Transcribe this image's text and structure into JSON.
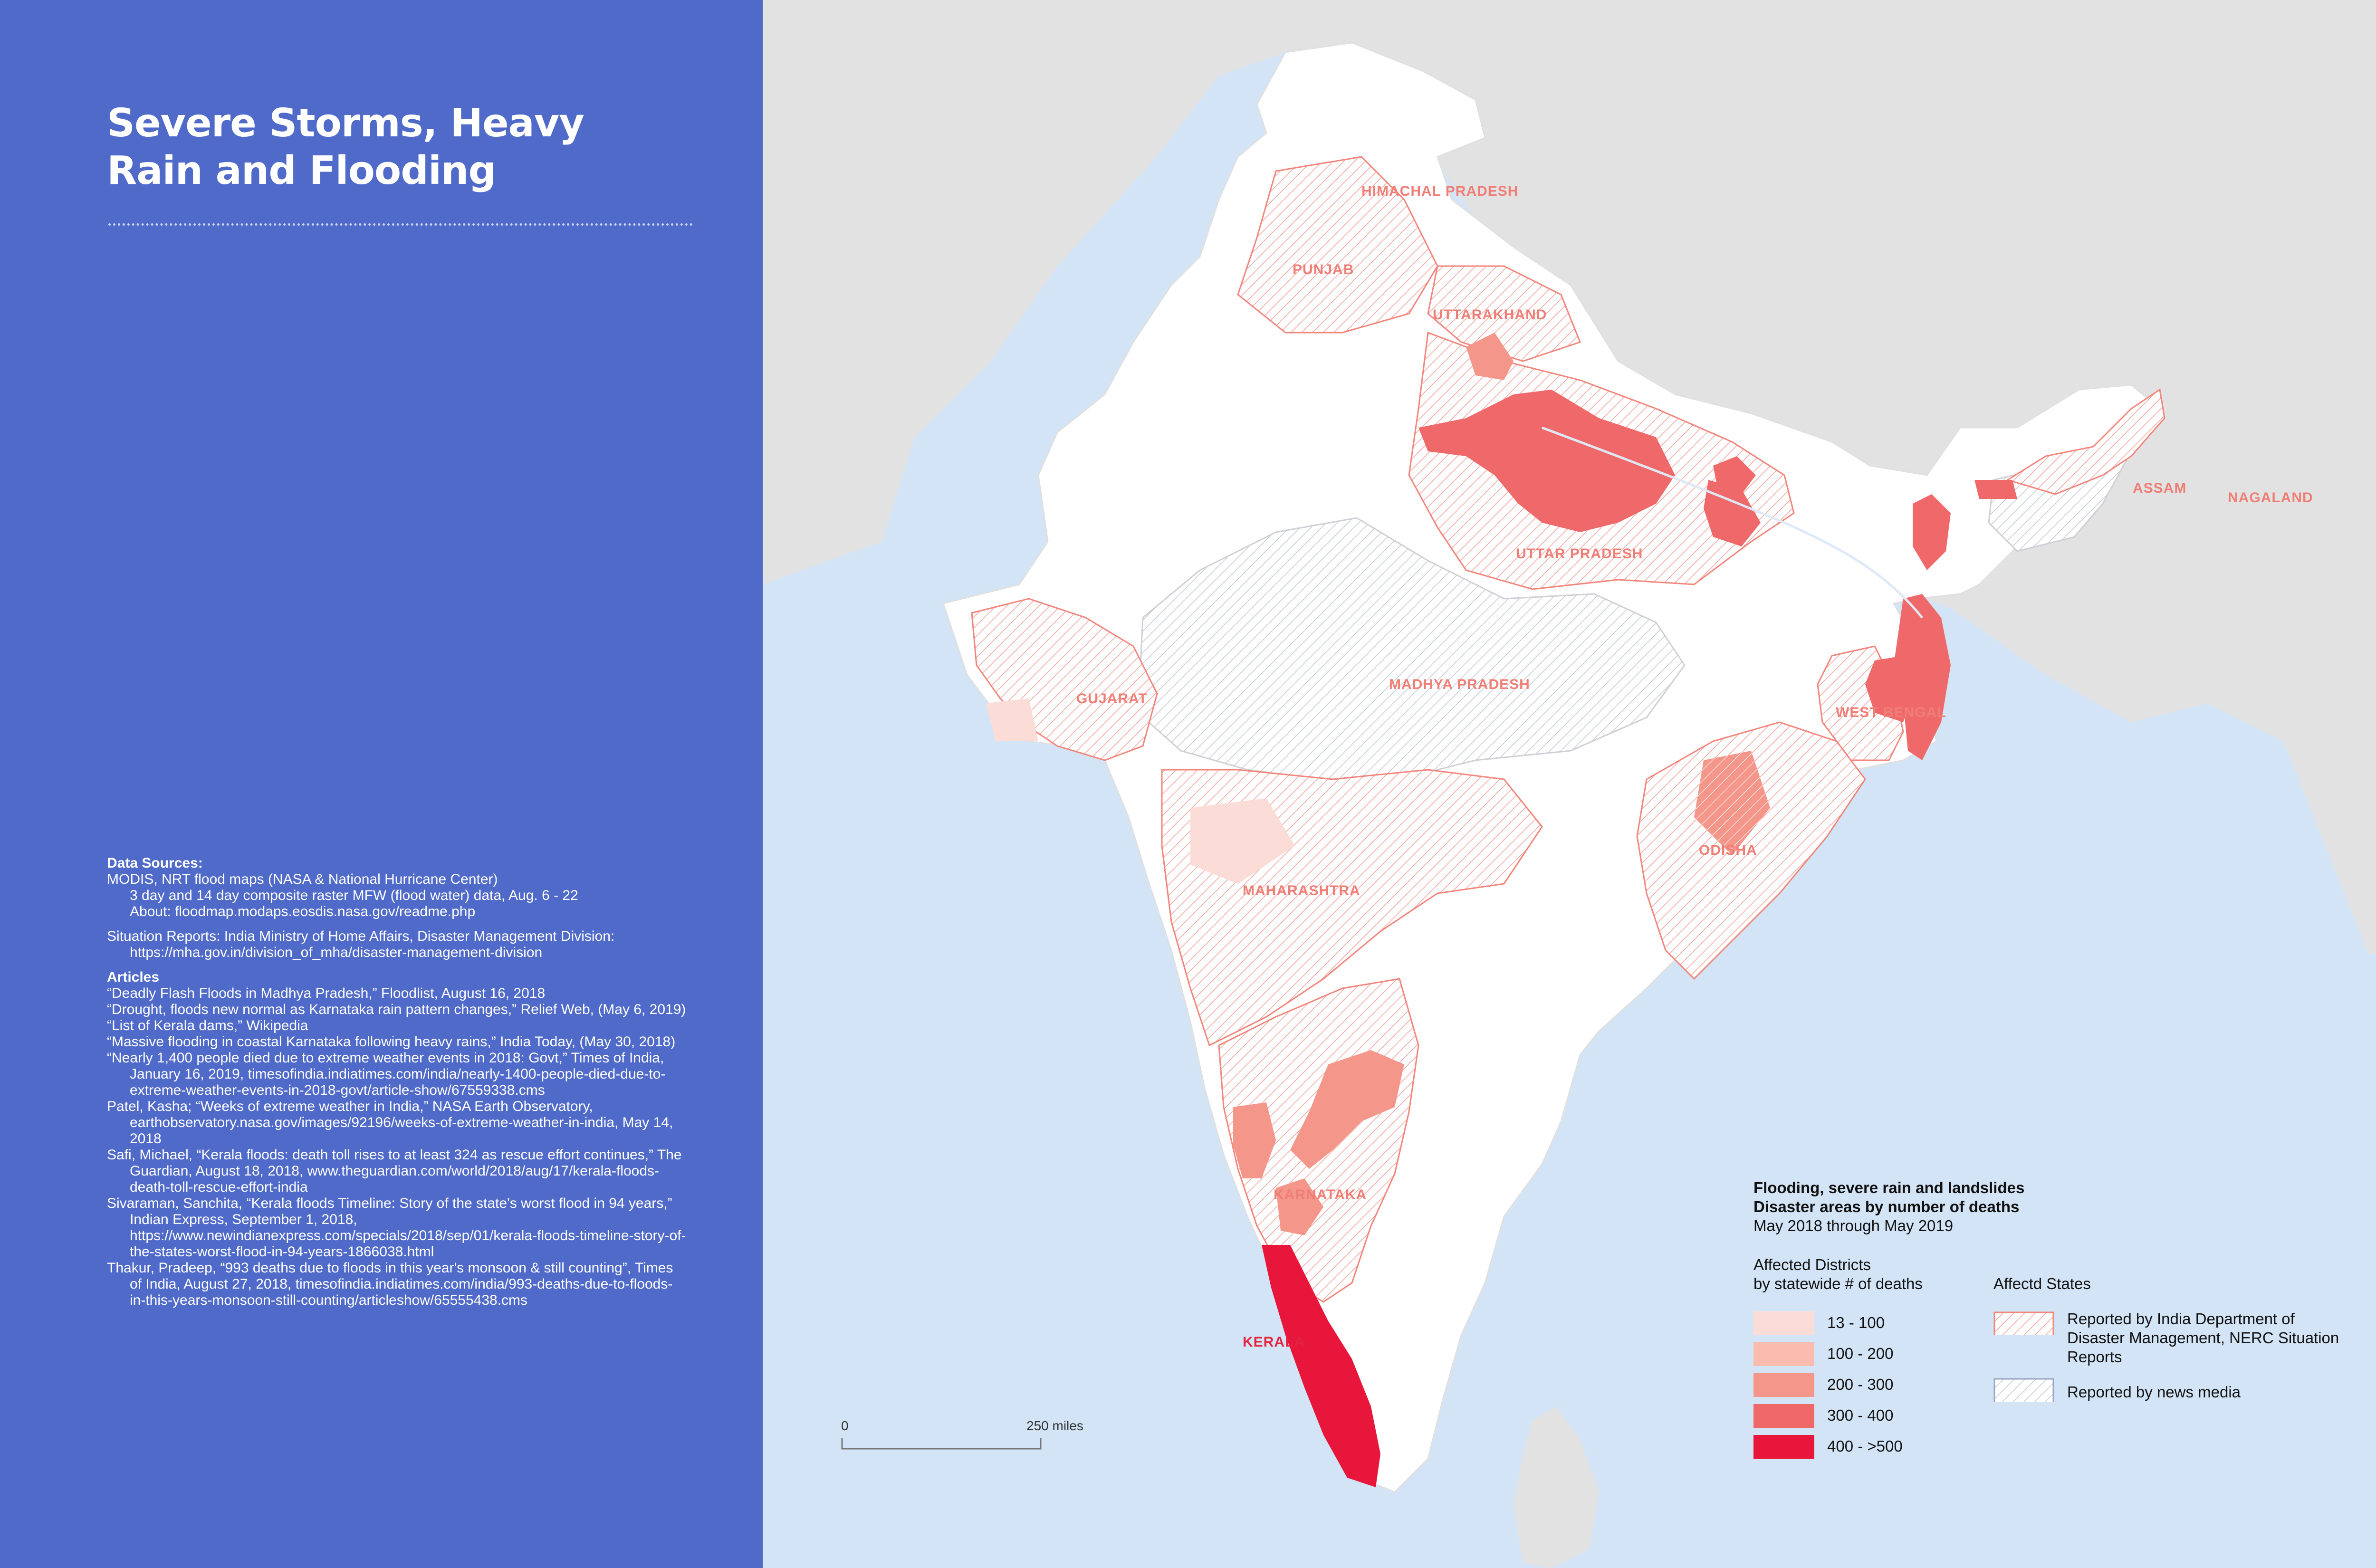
{
  "panel": {
    "title_line1": "Severe Storms, Heavy",
    "title_line2": "Rain and Flooding",
    "data_sources_heading": "Data Sources:",
    "source_modis": "MODIS, NRT flood maps (NASA & National Hurricane Center)",
    "source_modis_detail": "3 day and 14 day composite raster MFW (flood water) data, Aug. 6 - 22",
    "source_modis_about": "About: floodmap.modaps.eosdis.nasa.gov/readme.php",
    "source_situation": "Situation Reports: India Ministry of Home Affairs, Disaster Management Division: https://mha.gov.in/division_of_mha/disaster-management-division",
    "articles_heading": "Articles",
    "articles": [
      "“Deadly Flash Floods in Madhya Pradesh,” Floodlist, August 16, 2018",
      "“Drought, floods new normal as Karnataka rain pattern changes,” Relief Web, (May 6, 2019)",
      "“List of Kerala dams,” Wikipedia",
      "“Massive flooding in coastal Karnataka following heavy rains,” India Today, (May 30, 2018)",
      "“Nearly 1,400 people died due to extreme weather events in 2018: Govt,” Times of India, January 16, 2019, timesofindia.indiatimes.com/india/nearly-1400-people-died-due-to-extreme-weather-events-in-2018-govt/article-show/67559338.cms",
      "Patel, Kasha; “Weeks of extreme weather in India,” NASA Earth Observatory, earthobservatory.nasa.gov/images/92196/weeks-of-extreme-weather-in-india, May 14, 2018",
      "Safi, Michael, “Kerala floods: death toll rises to at least 324 as rescue effort continues,” The Guardian, August 18, 2018, www.theguardian.com/world/2018/aug/17/kerala-floods-death-toll-rescue-effort-india",
      "Sivaraman, Sanchita, “Kerala floods Timeline: Story of the state's worst flood in 94 years,” Indian Express, September 1, 2018, https://www.newindianexpress.com/specials/2018/sep/01/kerala-floods-timeline-story-of-the-states-worst-flood-in-94-years-1866038.html",
      "Thakur, Pradeep, “993 deaths due to floods in this year's monsoon & still counting”, Times of India, August 27, 2018, timesofindia.indiatimes.com/india/993-deaths-due-to-floods-in-this-years-monsoon-still-counting/articleshow/65555438.cms"
    ]
  },
  "map": {
    "states": {
      "himachal": "HIMACHAL PRADESH",
      "punjab": "PUNJAB",
      "uttarakhand": "UTTARAKHAND",
      "uttar_pradesh": "UTTAR PRADESH",
      "assam": "ASSAM",
      "nagaland": "NAGALAND",
      "gujarat": "GUJARAT",
      "madhya_pradesh": "MADHYA PRADESH",
      "west_bengal": "WEST BENGAL",
      "odisha": "ODISHA",
      "maharashtra": "MAHARASHTRA",
      "karnataka": "KARNATAKA",
      "kerala": "KERALA"
    },
    "scale": {
      "zero": "0",
      "distance": "250 miles"
    }
  },
  "legend": {
    "title1": "Flooding, severe rain and landslides",
    "title2": "Disaster areas by number of deaths",
    "period": "May 2018 through May 2019",
    "districts_heading1": "Affected Districts",
    "districts_heading2": "by statewide # of deaths",
    "states_heading": "Affectd States",
    "classes": [
      {
        "label": "13 - 100",
        "color": "#fcdcd6"
      },
      {
        "label": "100 - 200",
        "color": "#f9bcae"
      },
      {
        "label": "200 - 300",
        "color": "#f5968a"
      },
      {
        "label": "300 - 400",
        "color": "#f0696a"
      },
      {
        "label": "400 - >500",
        "color": "#e8163b"
      }
    ],
    "state_types": [
      {
        "label": "Reported by India Department of Disaster Management, NERC Situation Reports",
        "color": "#f2857c"
      },
      {
        "label": "Reported by news media",
        "color": "#9aa7c4"
      }
    ]
  }
}
